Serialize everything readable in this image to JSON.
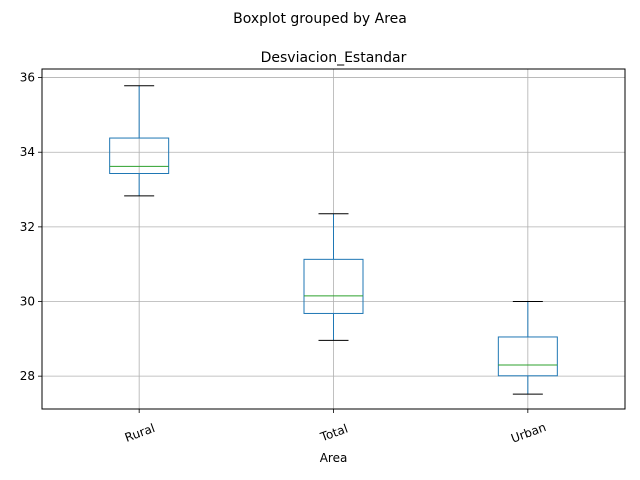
{
  "chart_data": {
    "type": "boxplot",
    "suptitle": "Boxplot grouped by Area",
    "title": "Desviacion_Estandar",
    "xlabel": "Area",
    "ylabel": "",
    "categories": [
      "Rural",
      "Total",
      "Urban"
    ],
    "boxes": [
      {
        "category": "Rural",
        "whisker_low": 32.83,
        "q1": 33.43,
        "median": 33.62,
        "q3": 34.38,
        "whisker_high": 35.78
      },
      {
        "category": "Total",
        "whisker_low": 28.96,
        "q1": 29.68,
        "median": 30.15,
        "q3": 31.13,
        "whisker_high": 32.35
      },
      {
        "category": "Urban",
        "whisker_low": 27.52,
        "q1": 28.01,
        "median": 28.3,
        "q3": 29.05,
        "whisker_high": 30.0
      }
    ],
    "ylim": [
      27.12,
      36.23
    ],
    "yticks": [
      28,
      30,
      32,
      34,
      36
    ],
    "grid": true,
    "xtick_rotation": -20,
    "colors": {
      "box": "#1f77b4",
      "median": "#2ca02c",
      "cap": "#000000",
      "grid": "#b0b0b0"
    }
  }
}
